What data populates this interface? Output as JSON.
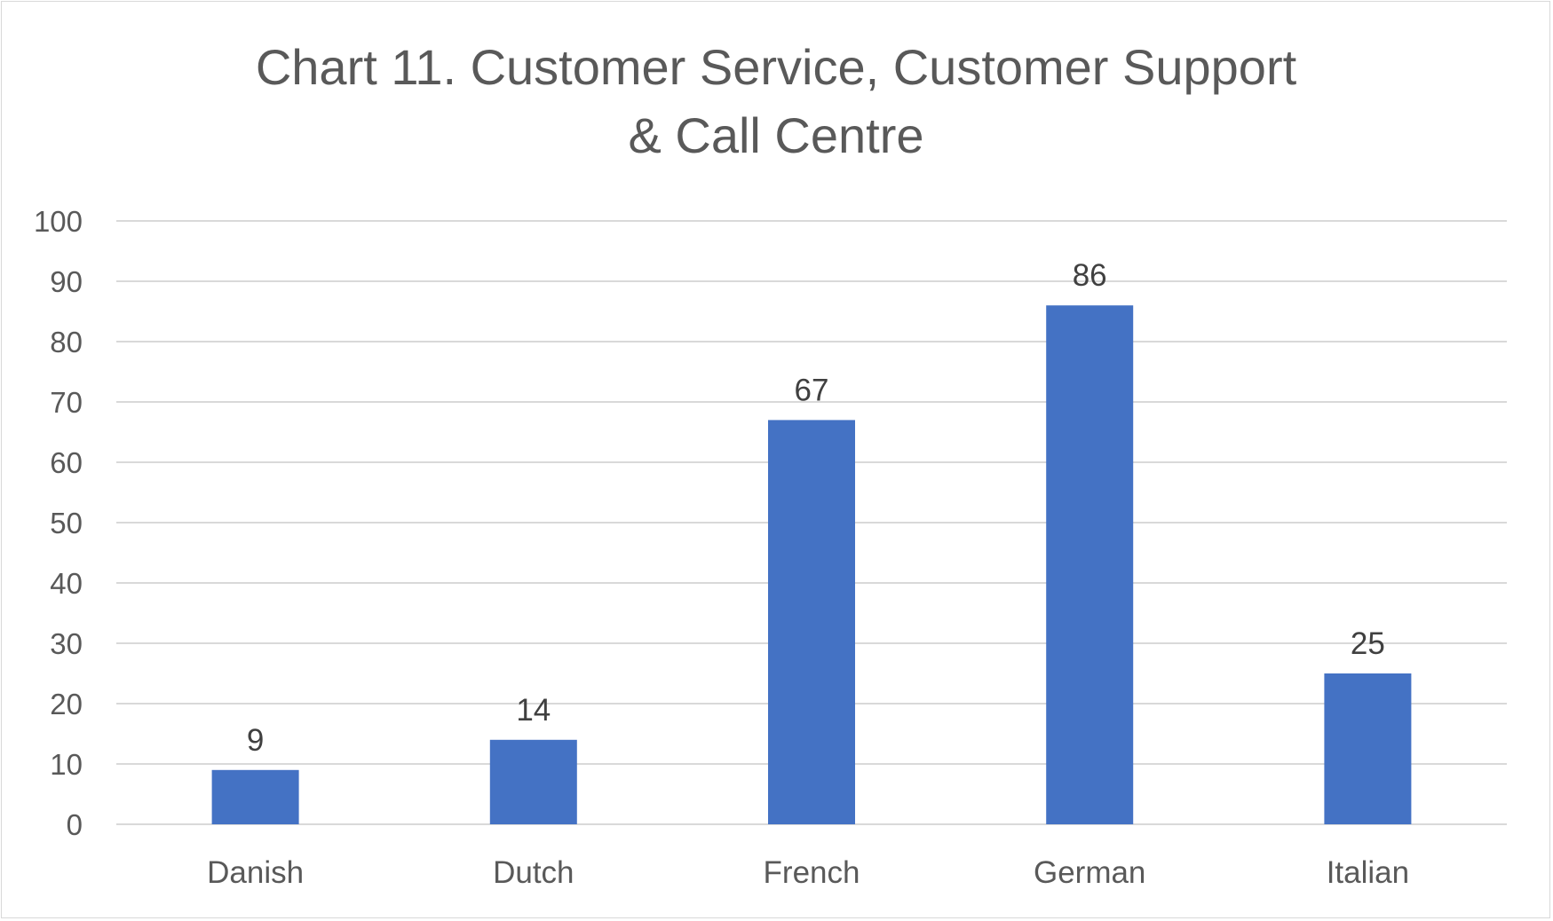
{
  "chart_data": {
    "type": "bar",
    "title_lines": [
      "Chart 11. Customer Service, Customer Support",
      "& Call Centre"
    ],
    "categories": [
      "Danish",
      "Dutch",
      "French",
      "German",
      "Italian"
    ],
    "series": [
      {
        "values": [
          9,
          14,
          67,
          86,
          25
        ]
      }
    ],
    "xlabel": "",
    "ylabel": "",
    "ylim": [
      0,
      100
    ],
    "yticks": [
      0,
      10,
      20,
      30,
      40,
      50,
      60,
      70,
      80,
      90,
      100
    ],
    "grid": true,
    "legend": "none",
    "data_labels": true,
    "colors": {
      "bar": "#4472c4",
      "grid": "#d9d9d9",
      "title": "#595959",
      "axis_text": "#595959",
      "data_label": "#404040"
    }
  }
}
